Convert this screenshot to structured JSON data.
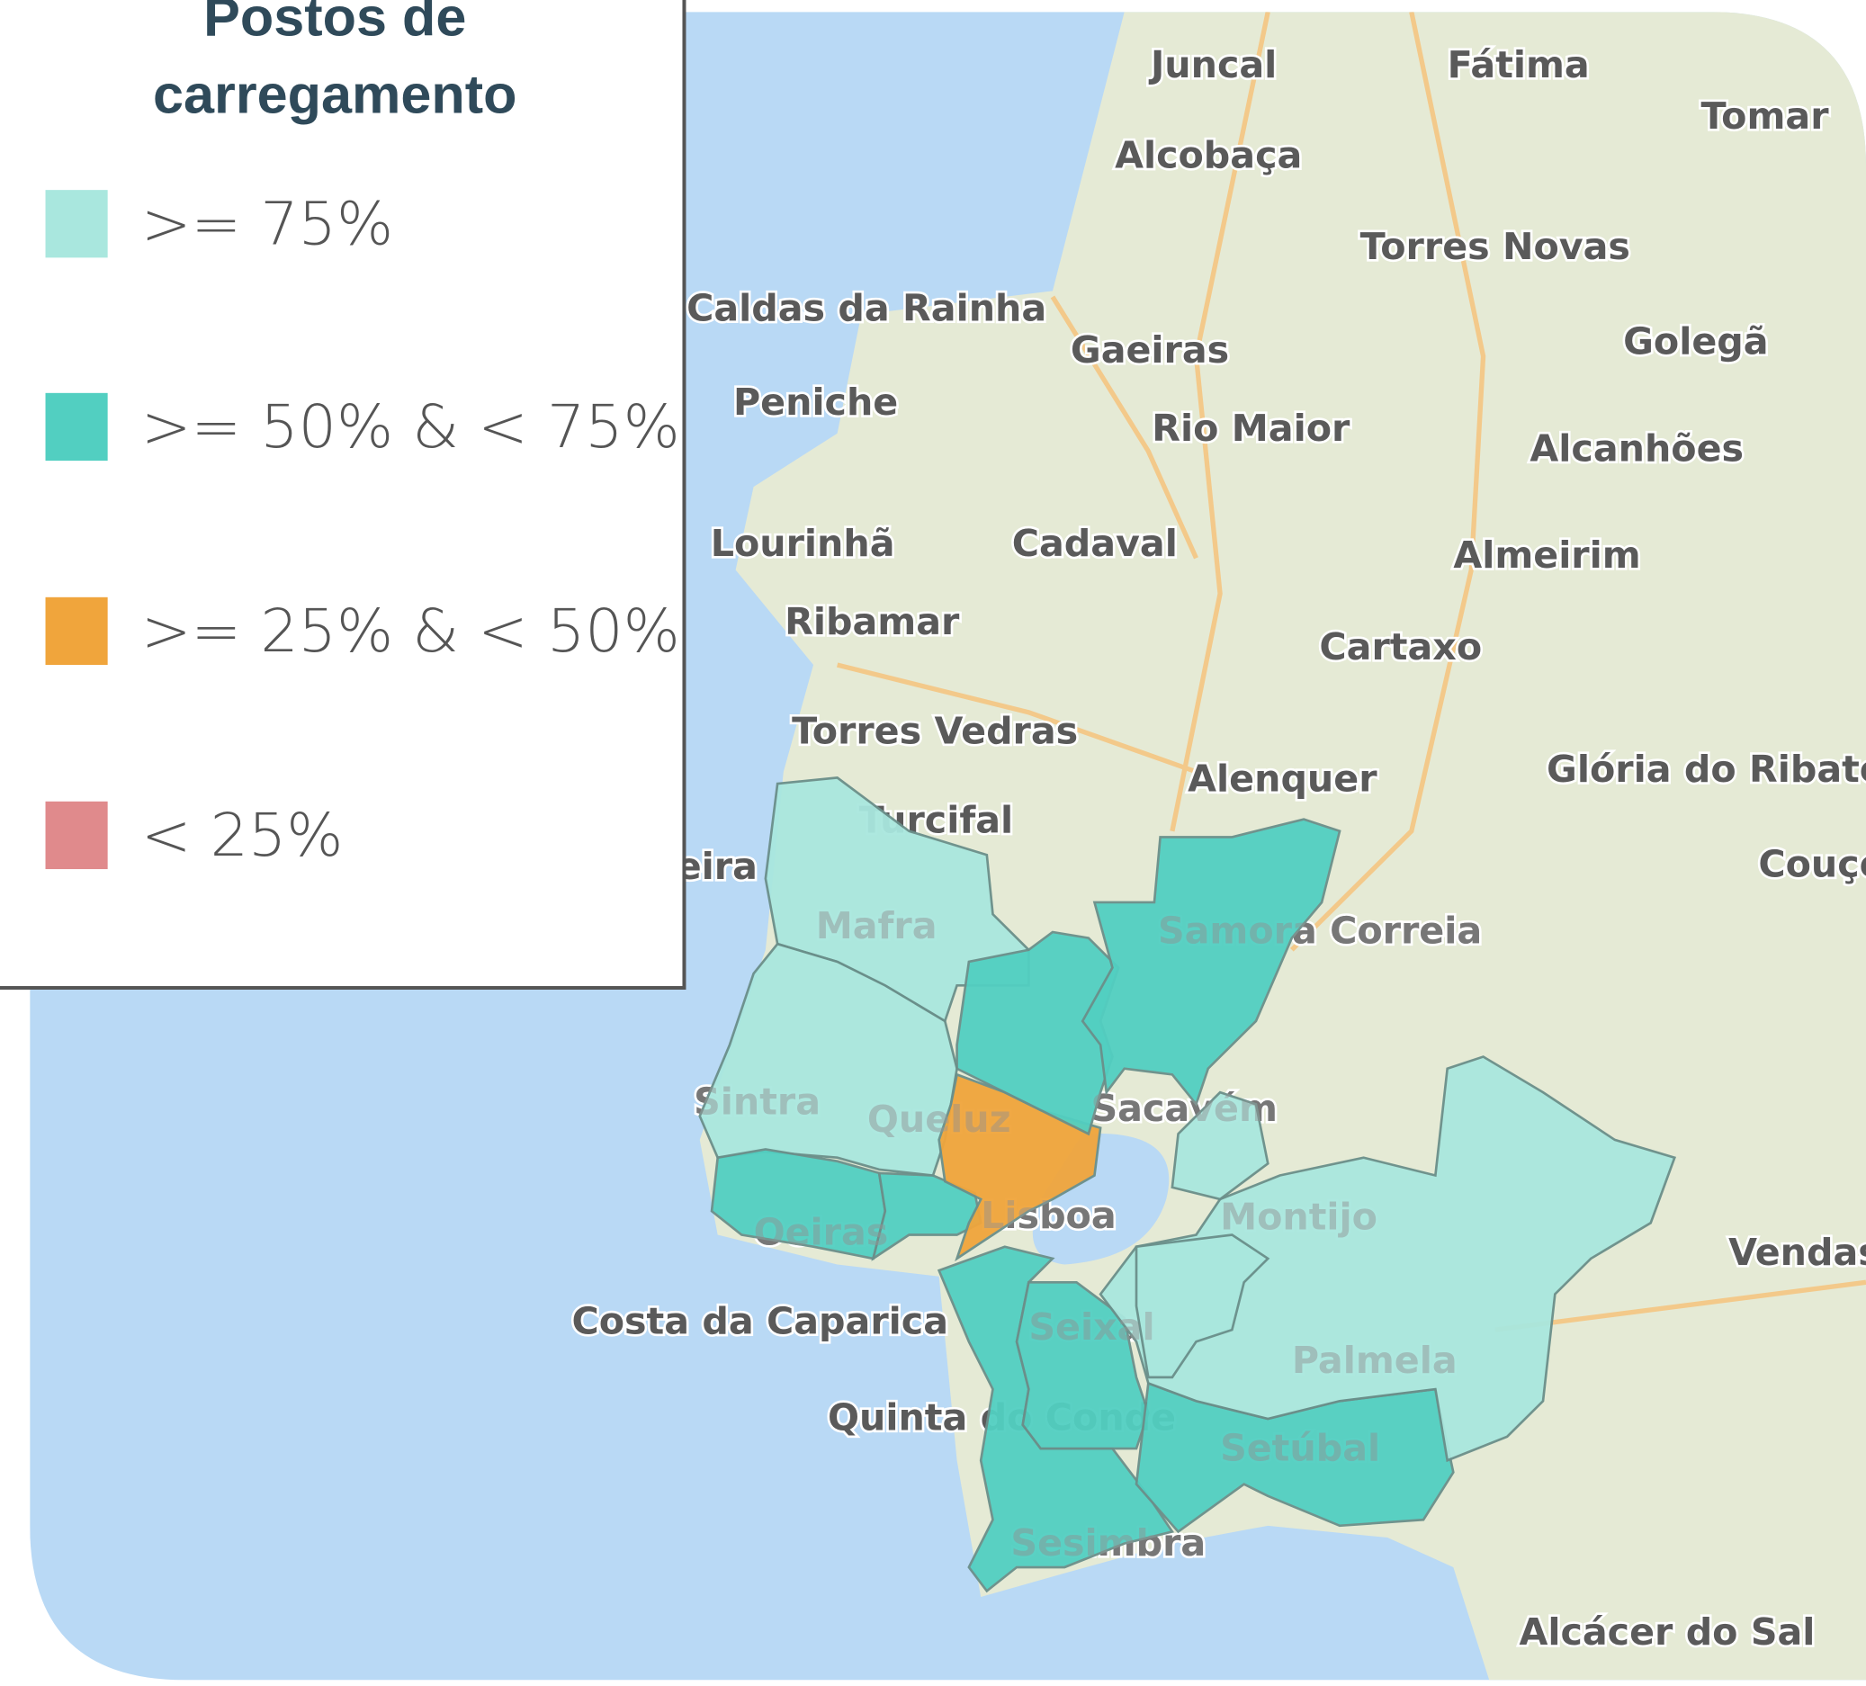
{
  "legend": {
    "title": "Postos de carregamento",
    "items": [
      {
        "label": ">= 75%",
        "color": "#a9e7de"
      },
      {
        "label": ">= 50% & < 75%",
        "color": "#52cfc1"
      },
      {
        "label": ">= 25% & < 50%",
        "color": "#f0a53c"
      },
      {
        "label": "< 25%",
        "color": "#e08a8c"
      }
    ]
  },
  "places": [
    "Juncal",
    "Fátima",
    "Tomar",
    "Alcobaça",
    "Torres Novas",
    "Caldas da Rainha",
    "Gaeiras",
    "Golegã",
    "Peniche",
    "Rio Maior",
    "Alcanhões",
    "Lourinhã",
    "Cadaval",
    "Almeirim",
    "Ribamar",
    "Cartaxo",
    "Torres Vedras",
    "Alenquer",
    "Glória do Ribatejo",
    "Turcifal",
    "Ericeira",
    "Couço",
    "Samora Correia",
    "Mafra",
    "Sintra",
    "Queluz",
    "Sacavém",
    "Oeiras",
    "Lisboa",
    "Montijo",
    "Vendas Novas",
    "Costa da Caparica",
    "Seixal",
    "Palmela",
    "Quinta do Conde",
    "Setúbal",
    "Sesimbra",
    "Alcácer do Sal"
  ],
  "regions": [
    {
      "class": 0
    },
    {
      "class": 0
    },
    {
      "class": 1
    },
    {
      "class": 1
    },
    {
      "class": 2
    },
    {
      "class": 1
    },
    {
      "class": 1
    },
    {
      "class": 1
    },
    {
      "class": 1
    },
    {
      "class": 1
    },
    {
      "class": 0
    },
    {
      "class": 0
    },
    {
      "class": 0
    }
  ]
}
